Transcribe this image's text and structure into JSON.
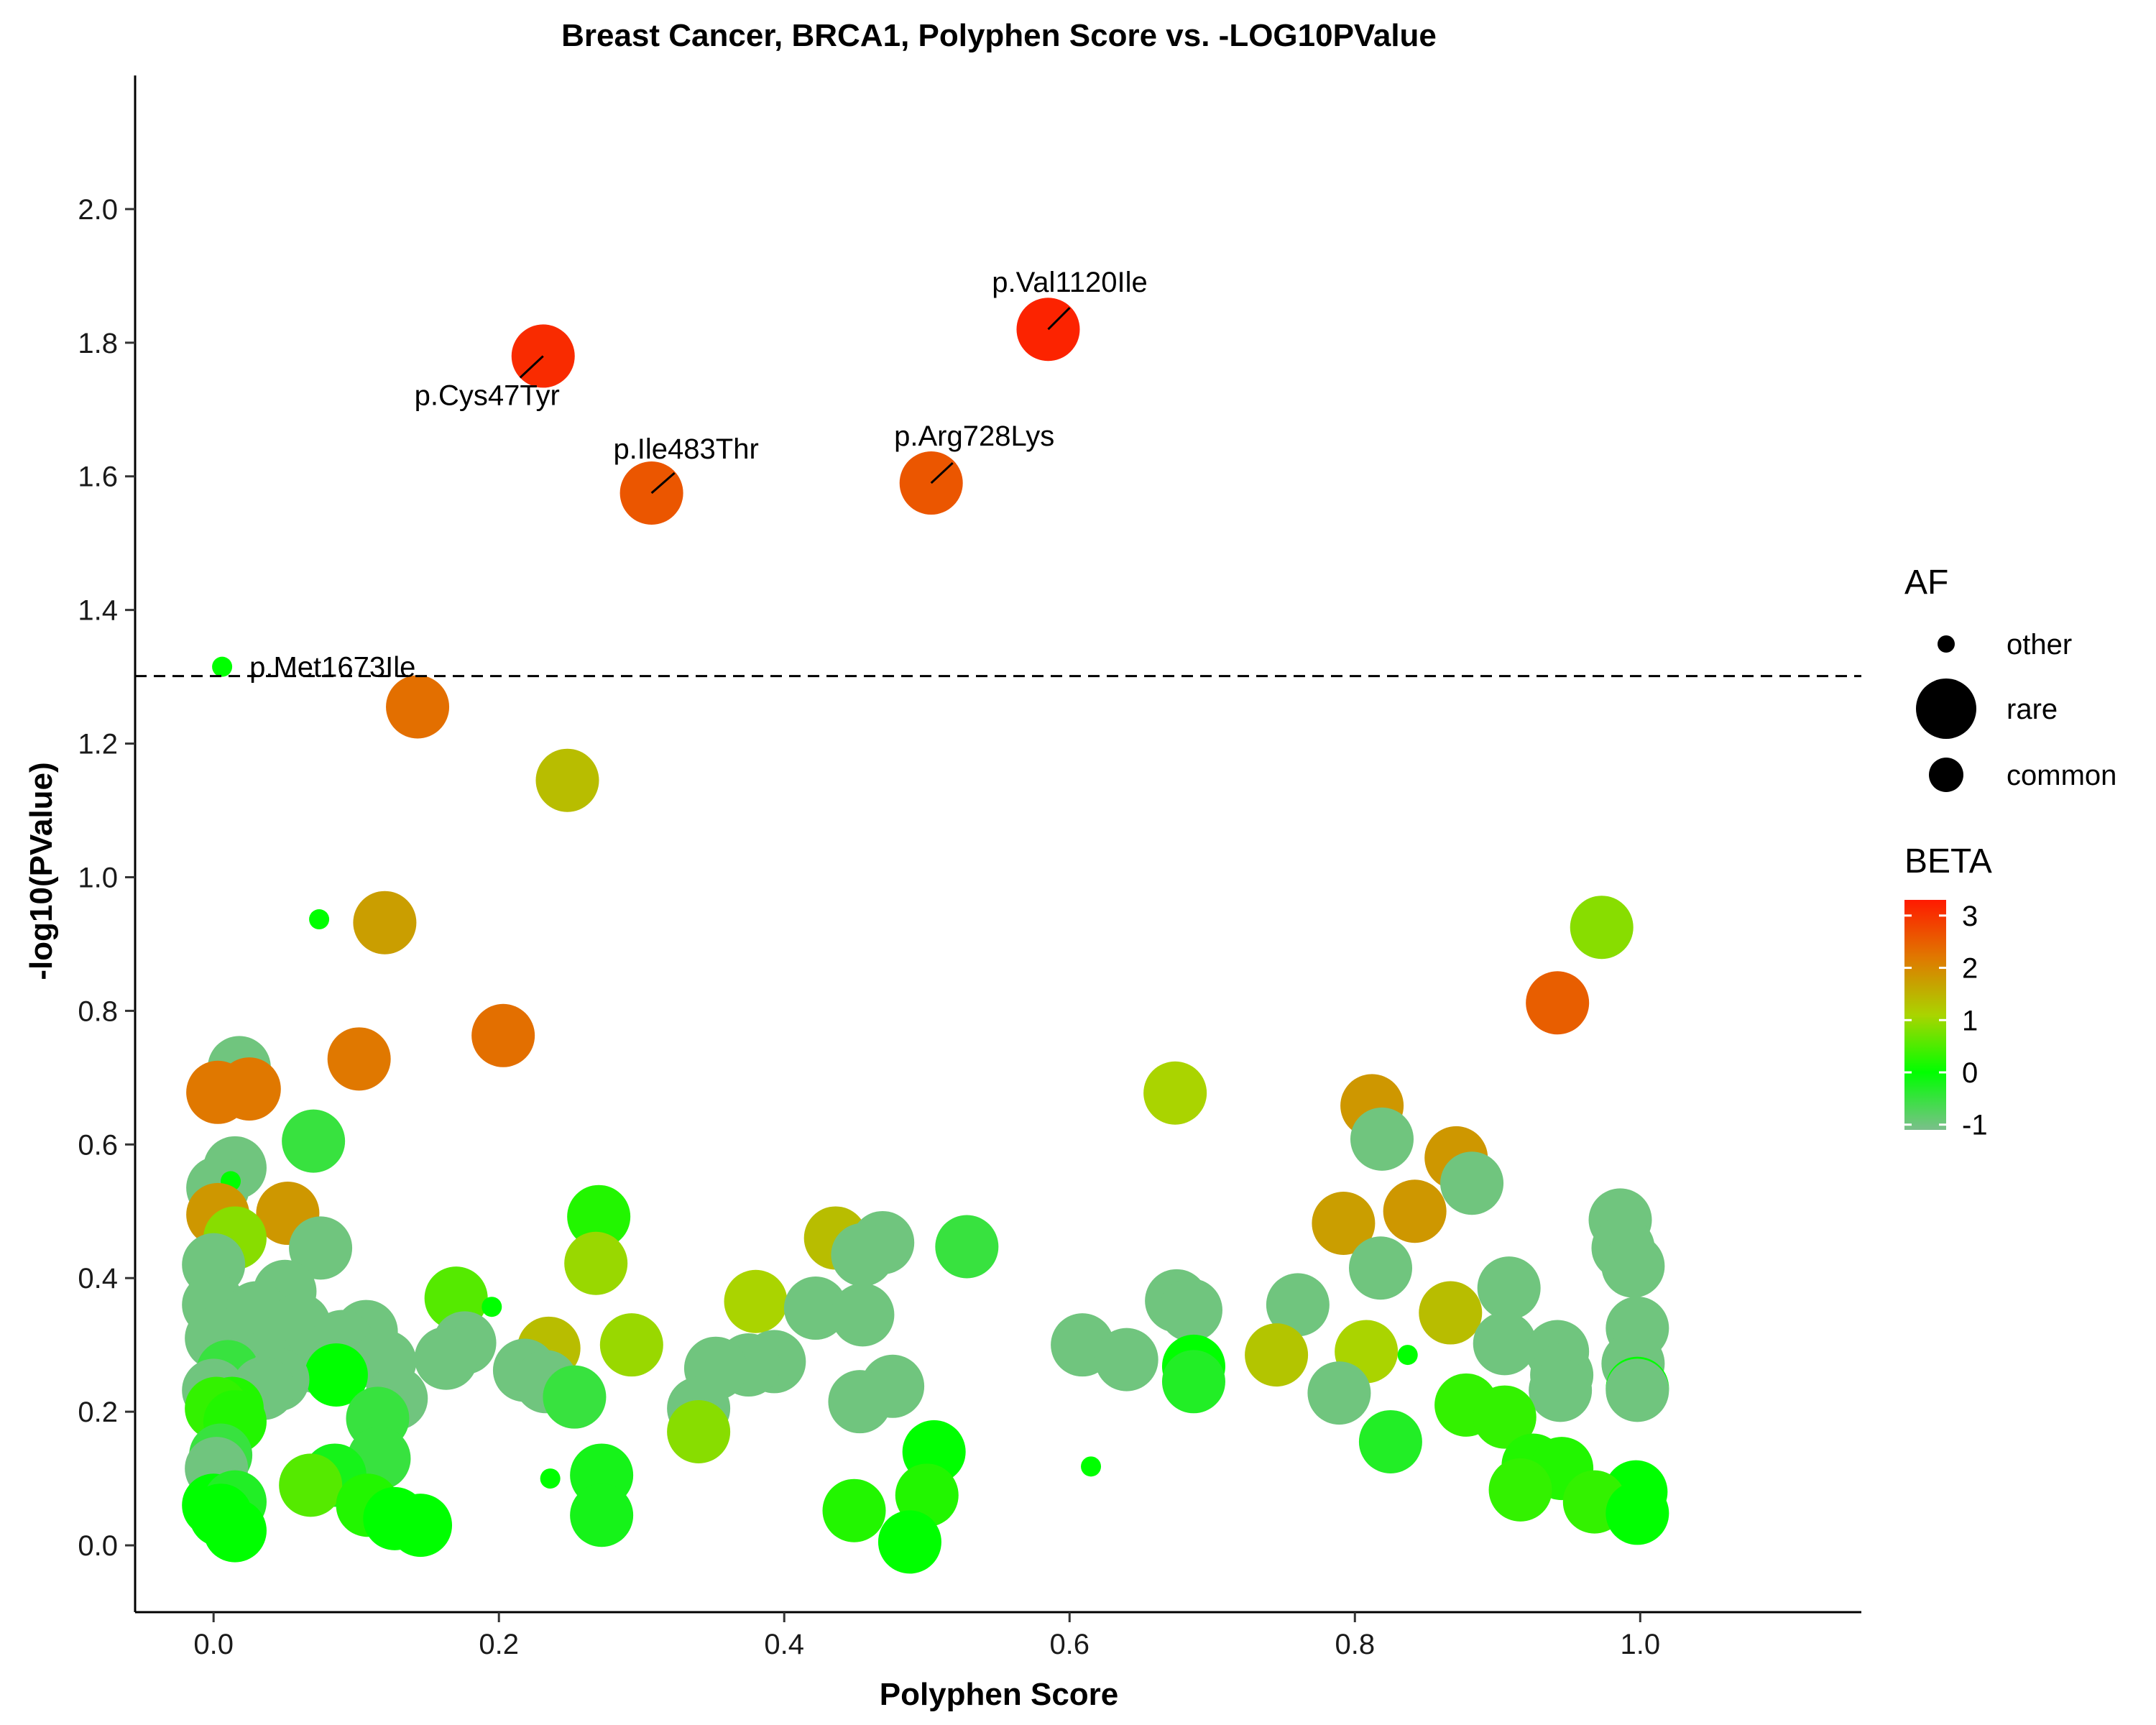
{
  "chart_data": {
    "type": "scatter",
    "title": "Breast Cancer, BRCA1, Polyphen Score vs. -LOG10PValue",
    "xlabel": "Polyphen Score",
    "ylabel": "-log10(PValue)",
    "xlim": [
      -0.055,
      1.155
    ],
    "ylim": [
      -0.1,
      2.2
    ],
    "xticks": [
      0.0,
      0.2,
      0.4,
      0.6,
      0.8,
      1.0
    ],
    "xtick_labels": [
      "0.0",
      "0.2",
      "0.4",
      "0.6",
      "0.8",
      "1.0"
    ],
    "yticks": [
      0.0,
      0.2,
      0.4,
      0.6,
      0.8,
      1.0,
      1.2,
      1.4,
      1.6,
      1.8,
      2.0
    ],
    "ytick_labels": [
      "0.0",
      "0.2",
      "0.4",
      "0.6",
      "0.8",
      "1.0",
      "1.2",
      "1.4",
      "1.6",
      "1.8",
      "2.0"
    ],
    "threshold_line": {
      "y": 1.301,
      "style": "dashed"
    },
    "grid": false,
    "legend_placement": "right",
    "size_legend": {
      "title": "AF",
      "items": [
        {
          "label": "other",
          "size": "small"
        },
        {
          "label": "rare",
          "size": "large"
        },
        {
          "label": "common",
          "size": "medium"
        }
      ]
    },
    "color_legend": {
      "title": "BETA",
      "min": -1.1,
      "max": 3.3,
      "ticks": [
        3,
        2,
        1,
        0,
        -1
      ],
      "tick_labels": [
        "3",
        "2",
        "1",
        "0",
        "-1"
      ],
      "colors": [
        "#7bbf8b",
        "#00ff00",
        "#aad400",
        "#e07800",
        "#ff1a00"
      ]
    },
    "annotations": [
      {
        "label": "p.Val1120Ile",
        "x": 0.585,
        "y": 1.82
      },
      {
        "label": "p.Cys47Tyr",
        "x": 0.231,
        "y": 1.78
      },
      {
        "label": "p.Ile483Thr",
        "x": 0.307,
        "y": 1.575
      },
      {
        "label": "p.Arg728Lys",
        "x": 0.503,
        "y": 1.59
      },
      {
        "label": "p.Met1673Ile",
        "x": 0.006,
        "y": 1.315
      }
    ],
    "points": [
      {
        "x": 0.585,
        "y": 1.82,
        "beta": 3.2,
        "af": "rare"
      },
      {
        "x": 0.231,
        "y": 1.78,
        "beta": 3.1,
        "af": "rare"
      },
      {
        "x": 0.307,
        "y": 1.575,
        "beta": 2.6,
        "af": "rare"
      },
      {
        "x": 0.503,
        "y": 1.59,
        "beta": 2.6,
        "af": "rare"
      },
      {
        "x": 0.006,
        "y": 1.315,
        "beta": 0.0,
        "af": "other"
      },
      {
        "x": 0.143,
        "y": 1.255,
        "beta": 2.3,
        "af": "rare"
      },
      {
        "x": 0.248,
        "y": 1.145,
        "beta": 1.3,
        "af": "rare"
      },
      {
        "x": 0.074,
        "y": 0.937,
        "beta": 0.0,
        "af": "other"
      },
      {
        "x": 0.12,
        "y": 0.932,
        "beta": 1.7,
        "af": "rare"
      },
      {
        "x": 0.973,
        "y": 0.925,
        "beta": 0.8,
        "af": "rare"
      },
      {
        "x": 0.942,
        "y": 0.812,
        "beta": 2.5,
        "af": "rare"
      },
      {
        "x": 0.203,
        "y": 0.763,
        "beta": 2.3,
        "af": "rare"
      },
      {
        "x": 0.102,
        "y": 0.728,
        "beta": 2.2,
        "af": "rare"
      },
      {
        "x": 0.018,
        "y": 0.715,
        "beta": -1.0,
        "af": "rare"
      },
      {
        "x": 0.025,
        "y": 0.683,
        "beta": 2.2,
        "af": "rare"
      },
      {
        "x": 0.003,
        "y": 0.678,
        "beta": 2.2,
        "af": "rare"
      },
      {
        "x": 0.674,
        "y": 0.677,
        "beta": 1.0,
        "af": "rare"
      },
      {
        "x": 0.812,
        "y": 0.658,
        "beta": 1.8,
        "af": "rare"
      },
      {
        "x": 0.07,
        "y": 0.605,
        "beta": -0.5,
        "af": "rare"
      },
      {
        "x": 0.819,
        "y": 0.608,
        "beta": -1.0,
        "af": "rare"
      },
      {
        "x": 0.871,
        "y": 0.58,
        "beta": 1.8,
        "af": "rare"
      },
      {
        "x": 0.015,
        "y": 0.565,
        "beta": -1.0,
        "af": "rare"
      },
      {
        "x": 0.882,
        "y": 0.542,
        "beta": -1.0,
        "af": "rare"
      },
      {
        "x": 0.003,
        "y": 0.535,
        "beta": -1.0,
        "af": "rare"
      },
      {
        "x": 0.012,
        "y": 0.545,
        "beta": 0.0,
        "af": "other"
      },
      {
        "x": 0.052,
        "y": 0.497,
        "beta": 1.8,
        "af": "rare"
      },
      {
        "x": 0.003,
        "y": 0.495,
        "beta": 1.8,
        "af": "rare"
      },
      {
        "x": 0.27,
        "y": 0.492,
        "beta": 0.2,
        "af": "rare"
      },
      {
        "x": 0.842,
        "y": 0.5,
        "beta": 1.8,
        "af": "rare"
      },
      {
        "x": 0.986,
        "y": 0.487,
        "beta": -1.0,
        "af": "rare"
      },
      {
        "x": 0.792,
        "y": 0.482,
        "beta": 1.7,
        "af": "rare"
      },
      {
        "x": 0.015,
        "y": 0.46,
        "beta": 0.8,
        "af": "rare"
      },
      {
        "x": 0.436,
        "y": 0.46,
        "beta": 1.3,
        "af": "rare"
      },
      {
        "x": 0.469,
        "y": 0.453,
        "beta": -1.0,
        "af": "rare"
      },
      {
        "x": 0.528,
        "y": 0.447,
        "beta": -0.5,
        "af": "rare"
      },
      {
        "x": 0.075,
        "y": 0.445,
        "beta": -1.0,
        "af": "rare"
      },
      {
        "x": 0.988,
        "y": 0.445,
        "beta": -1.0,
        "af": "rare"
      },
      {
        "x": 0.455,
        "y": 0.435,
        "beta": -1.0,
        "af": "rare"
      },
      {
        "x": 0.268,
        "y": 0.422,
        "beta": 0.9,
        "af": "rare"
      },
      {
        "x": 0.0,
        "y": 0.42,
        "beta": -1.0,
        "af": "rare"
      },
      {
        "x": 0.995,
        "y": 0.418,
        "beta": -1.0,
        "af": "rare"
      },
      {
        "x": 0.818,
        "y": 0.415,
        "beta": -1.0,
        "af": "rare"
      },
      {
        "x": 0.908,
        "y": 0.385,
        "beta": -1.0,
        "af": "rare"
      },
      {
        "x": 0.05,
        "y": 0.38,
        "beta": -1.0,
        "af": "rare"
      },
      {
        "x": 0.17,
        "y": 0.37,
        "beta": 0.5,
        "af": "rare"
      },
      {
        "x": 0.38,
        "y": 0.365,
        "beta": 1.0,
        "af": "rare"
      },
      {
        "x": 0.675,
        "y": 0.366,
        "beta": -1.0,
        "af": "rare"
      },
      {
        "x": 0.76,
        "y": 0.36,
        "beta": -1.0,
        "af": "rare"
      },
      {
        "x": 0.0,
        "y": 0.36,
        "beta": -1.0,
        "af": "rare"
      },
      {
        "x": 0.195,
        "y": 0.357,
        "beta": 0.0,
        "af": "other"
      },
      {
        "x": 0.422,
        "y": 0.355,
        "beta": -1.0,
        "af": "rare"
      },
      {
        "x": 0.685,
        "y": 0.352,
        "beta": -1.0,
        "af": "rare"
      },
      {
        "x": 0.03,
        "y": 0.348,
        "beta": -1.0,
        "af": "rare"
      },
      {
        "x": 0.455,
        "y": 0.345,
        "beta": -1.0,
        "af": "rare"
      },
      {
        "x": 0.867,
        "y": 0.348,
        "beta": 1.3,
        "af": "rare"
      },
      {
        "x": 0.06,
        "y": 0.33,
        "beta": -1.0,
        "af": "rare"
      },
      {
        "x": 0.998,
        "y": 0.325,
        "beta": -1.0,
        "af": "rare"
      },
      {
        "x": 0.107,
        "y": 0.32,
        "beta": -1.0,
        "af": "rare"
      },
      {
        "x": 0.002,
        "y": 0.31,
        "beta": -1.0,
        "af": "rare"
      },
      {
        "x": 0.09,
        "y": 0.305,
        "beta": -1.0,
        "af": "rare"
      },
      {
        "x": 0.176,
        "y": 0.303,
        "beta": -1.0,
        "af": "rare"
      },
      {
        "x": 0.905,
        "y": 0.302,
        "beta": -1.0,
        "af": "rare"
      },
      {
        "x": 0.988,
        "y": 0.3,
        "beta": 0.0,
        "af": "other"
      },
      {
        "x": 0.293,
        "y": 0.3,
        "beta": 0.9,
        "af": "rare"
      },
      {
        "x": 0.609,
        "y": 0.3,
        "beta": -1.0,
        "af": "rare"
      },
      {
        "x": 0.235,
        "y": 0.295,
        "beta": 1.3,
        "af": "rare"
      },
      {
        "x": 0.808,
        "y": 0.29,
        "beta": 1.0,
        "af": "rare"
      },
      {
        "x": 0.942,
        "y": 0.29,
        "beta": -1.0,
        "af": "rare"
      },
      {
        "x": 0.745,
        "y": 0.285,
        "beta": 1.2,
        "af": "rare"
      },
      {
        "x": 0.837,
        "y": 0.285,
        "beta": 0.0,
        "af": "other"
      },
      {
        "x": 0.163,
        "y": 0.28,
        "beta": -1.0,
        "af": "rare"
      },
      {
        "x": 0.64,
        "y": 0.278,
        "beta": -1.0,
        "af": "rare"
      },
      {
        "x": 0.072,
        "y": 0.275,
        "beta": -1.0,
        "af": "rare"
      },
      {
        "x": 0.12,
        "y": 0.275,
        "beta": -1.0,
        "af": "rare"
      },
      {
        "x": 0.393,
        "y": 0.275,
        "beta": -1.0,
        "af": "rare"
      },
      {
        "x": 0.035,
        "y": 0.272,
        "beta": -1.0,
        "af": "rare"
      },
      {
        "x": 0.995,
        "y": 0.272,
        "beta": -1.0,
        "af": "rare"
      },
      {
        "x": 0.375,
        "y": 0.27,
        "beta": -1.0,
        "af": "rare"
      },
      {
        "x": 0.687,
        "y": 0.268,
        "beta": 0.0,
        "af": "rare"
      },
      {
        "x": 0.352,
        "y": 0.265,
        "beta": -1.0,
        "af": "rare"
      },
      {
        "x": 0.218,
        "y": 0.262,
        "beta": -1.0,
        "af": "rare"
      },
      {
        "x": 0.01,
        "y": 0.26,
        "beta": -0.5,
        "af": "rare"
      },
      {
        "x": 0.086,
        "y": 0.255,
        "beta": 0.0,
        "af": "rare"
      },
      {
        "x": 0.945,
        "y": 0.255,
        "beta": -1.0,
        "af": "rare"
      },
      {
        "x": 0.045,
        "y": 0.248,
        "beta": -1.0,
        "af": "rare"
      },
      {
        "x": 0.687,
        "y": 0.245,
        "beta": -0.3,
        "af": "rare"
      },
      {
        "x": 0.233,
        "y": 0.245,
        "beta": -1.0,
        "af": "rare"
      },
      {
        "x": 0.0,
        "y": 0.232,
        "beta": -1.0,
        "af": "rare"
      },
      {
        "x": 0.998,
        "y": 0.235,
        "beta": 0.0,
        "af": "rare"
      },
      {
        "x": 0.944,
        "y": 0.232,
        "beta": -1.0,
        "af": "rare"
      },
      {
        "x": 0.998,
        "y": 0.232,
        "beta": -1.0,
        "af": "rare"
      },
      {
        "x": 0.789,
        "y": 0.228,
        "beta": -1.0,
        "af": "rare"
      },
      {
        "x": 0.476,
        "y": 0.238,
        "beta": -1.0,
        "af": "rare"
      },
      {
        "x": 0.035,
        "y": 0.235,
        "beta": -1.0,
        "af": "rare"
      },
      {
        "x": 0.128,
        "y": 0.22,
        "beta": -1.0,
        "af": "rare"
      },
      {
        "x": 0.253,
        "y": 0.222,
        "beta": -0.5,
        "af": "rare"
      },
      {
        "x": 0.453,
        "y": 0.215,
        "beta": -1.0,
        "af": "rare"
      },
      {
        "x": 0.878,
        "y": 0.21,
        "beta": 0.3,
        "af": "rare"
      },
      {
        "x": 0.34,
        "y": 0.205,
        "beta": -1.0,
        "af": "rare"
      },
      {
        "x": 0.013,
        "y": 0.205,
        "beta": 0.2,
        "af": "rare"
      },
      {
        "x": 0.002,
        "y": 0.205,
        "beta": 0.3,
        "af": "rare"
      },
      {
        "x": 0.905,
        "y": 0.192,
        "beta": 0.3,
        "af": "rare"
      },
      {
        "x": 0.115,
        "y": 0.19,
        "beta": -0.5,
        "af": "rare"
      },
      {
        "x": 0.015,
        "y": 0.185,
        "beta": 0.2,
        "af": "rare"
      },
      {
        "x": 0.34,
        "y": 0.17,
        "beta": 0.8,
        "af": "rare"
      },
      {
        "x": 0.825,
        "y": 0.155,
        "beta": -0.3,
        "af": "rare"
      },
      {
        "x": 0.505,
        "y": 0.14,
        "beta": 0.0,
        "af": "rare"
      },
      {
        "x": 0.005,
        "y": 0.135,
        "beta": -0.5,
        "af": "rare"
      },
      {
        "x": 0.116,
        "y": 0.13,
        "beta": -0.5,
        "af": "rare"
      },
      {
        "x": 0.615,
        "y": 0.118,
        "beta": 0.0,
        "af": "other"
      },
      {
        "x": 0.925,
        "y": 0.12,
        "beta": 0.2,
        "af": "rare"
      },
      {
        "x": 0.002,
        "y": 0.115,
        "beta": -1.0,
        "af": "rare"
      },
      {
        "x": 0.945,
        "y": 0.115,
        "beta": 0.2,
        "af": "rare"
      },
      {
        "x": 0.085,
        "y": 0.105,
        "beta": -0.2,
        "af": "rare"
      },
      {
        "x": 0.272,
        "y": 0.105,
        "beta": -0.2,
        "af": "rare"
      },
      {
        "x": 0.236,
        "y": 0.1,
        "beta": 0.0,
        "af": "other"
      },
      {
        "x": 0.068,
        "y": 0.09,
        "beta": 0.5,
        "af": "rare"
      },
      {
        "x": 0.916,
        "y": 0.083,
        "beta": 0.3,
        "af": "rare"
      },
      {
        "x": 0.997,
        "y": 0.08,
        "beta": 0.0,
        "af": "rare"
      },
      {
        "x": 0.5,
        "y": 0.075,
        "beta": 0.2,
        "af": "rare"
      },
      {
        "x": 0.0,
        "y": 0.06,
        "beta": 0.0,
        "af": "rare"
      },
      {
        "x": 0.015,
        "y": 0.065,
        "beta": -0.3,
        "af": "rare"
      },
      {
        "x": 0.968,
        "y": 0.065,
        "beta": 0.3,
        "af": "rare"
      },
      {
        "x": 0.108,
        "y": 0.06,
        "beta": 0.2,
        "af": "rare"
      },
      {
        "x": 0.449,
        "y": 0.052,
        "beta": 0.2,
        "af": "rare"
      },
      {
        "x": 0.998,
        "y": 0.048,
        "beta": 0.0,
        "af": "rare"
      },
      {
        "x": 0.272,
        "y": 0.045,
        "beta": -0.2,
        "af": "rare"
      },
      {
        "x": 0.005,
        "y": 0.045,
        "beta": 0.0,
        "af": "rare"
      },
      {
        "x": 0.127,
        "y": 0.04,
        "beta": 0.0,
        "af": "rare"
      },
      {
        "x": 0.145,
        "y": 0.03,
        "beta": 0.0,
        "af": "rare"
      },
      {
        "x": 0.015,
        "y": 0.022,
        "beta": 0.0,
        "af": "rare"
      },
      {
        "x": 0.488,
        "y": 0.005,
        "beta": 0.0,
        "af": "rare"
      }
    ]
  }
}
